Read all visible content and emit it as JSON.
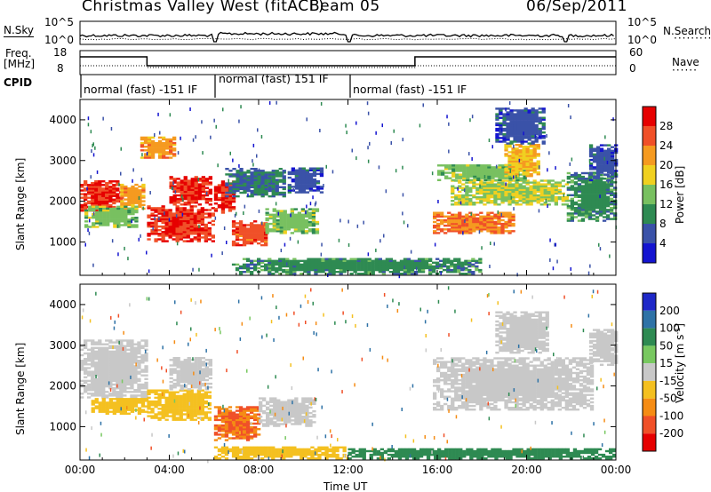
{
  "header": {
    "station": "Christmas Valley West (fitACF)",
    "beam": "Beam 05",
    "date": "06/Sep/2011"
  },
  "top_panels": {
    "nsky_label": "N.Sky",
    "nsky_tick_top": "10^5",
    "nsky_tick_bottom": "10^0",
    "nsearch_label": "N.Search",
    "nsearch_tick_top": "10^5",
    "nsearch_tick_bottom": "10^0",
    "freq_label_1": "Freq.",
    "freq_label_2": "[MHz]",
    "freq_tick_top": "18",
    "freq_tick_bottom": "8",
    "nave_label": "Nave",
    "nave_tick_top": "60",
    "nave_tick_bottom": "0",
    "cpid_label": "CPID",
    "cpid_segments": [
      "normal (fast) -151 IF",
      "normal (fast) 151 IF",
      "normal (fast) -151 IF"
    ]
  },
  "chart_data": [
    {
      "type": "heatmap",
      "title": "",
      "quantity": "Power",
      "ylabel": "Slant Range [km]",
      "xlabel": "Time UT",
      "x_ticks": [
        "00:00",
        "04:00",
        "08:00",
        "12:00",
        "16:00",
        "20:00",
        "00:00"
      ],
      "y_ticks": [
        1000,
        2000,
        3000,
        4000
      ],
      "ylim": [
        180,
        4500
      ],
      "xlim_hours": [
        0,
        24
      ],
      "colorbar": {
        "label": "Power [dB]",
        "ticks": [
          4,
          8,
          12,
          16,
          20,
          24,
          28
        ]
      },
      "colors": [
        "#1414d0",
        "#3a52a8",
        "#2e8a52",
        "#78c060",
        "#f0d020",
        "#f59a20",
        "#f05028",
        "#e60000"
      ],
      "regions": [
        {
          "t": [
            0.0,
            1.8
          ],
          "r": [
            1750,
            2500
          ],
          "level": 28
        },
        {
          "t": [
            1.8,
            2.9
          ],
          "r": [
            1800,
            2400
          ],
          "level": 22
        },
        {
          "t": [
            0.2,
            2.6
          ],
          "r": [
            1350,
            1850
          ],
          "level": 14
        },
        {
          "t": [
            3.0,
            5.9
          ],
          "r": [
            1000,
            1900
          ],
          "level": 28
        },
        {
          "t": [
            4.0,
            5.8
          ],
          "r": [
            1900,
            2600
          ],
          "level": 28
        },
        {
          "t": [
            2.7,
            4.2
          ],
          "r": [
            3050,
            3550
          ],
          "level": 22
        },
        {
          "t": [
            6.0,
            6.9
          ],
          "r": [
            1700,
            2500
          ],
          "level": 28
        },
        {
          "t": [
            6.8,
            8.4
          ],
          "r": [
            900,
            1500
          ],
          "level": 26
        },
        {
          "t": [
            8.3,
            10.6
          ],
          "r": [
            1200,
            1800
          ],
          "level": 14
        },
        {
          "t": [
            6.5,
            9.2
          ],
          "r": [
            2100,
            2800
          ],
          "level": 8
        },
        {
          "t": [
            9.3,
            10.8
          ],
          "r": [
            2200,
            2800
          ],
          "level": 6
        },
        {
          "t": [
            6.8,
            18.0
          ],
          "r": [
            200,
            600
          ],
          "level": 10
        },
        {
          "t": [
            15.8,
            19.4
          ],
          "r": [
            1200,
            1700
          ],
          "level": 24
        },
        {
          "t": [
            16.6,
            21.8
          ],
          "r": [
            1900,
            2500
          ],
          "level": 16
        },
        {
          "t": [
            16.0,
            20.0
          ],
          "r": [
            2500,
            2900
          ],
          "level": 14
        },
        {
          "t": [
            19.0,
            20.6
          ],
          "r": [
            2600,
            3400
          ],
          "level": 20
        },
        {
          "t": [
            18.6,
            20.8
          ],
          "r": [
            3400,
            4300
          ],
          "level": 6
        },
        {
          "t": [
            21.8,
            24.0
          ],
          "r": [
            1500,
            2700
          ],
          "level": 10
        },
        {
          "t": [
            22.8,
            24.0
          ],
          "r": [
            2500,
            3400
          ],
          "level": 6
        }
      ]
    },
    {
      "type": "heatmap",
      "title": "",
      "quantity": "Velocity",
      "ylabel": "Slant Range [km]",
      "xlabel": "Time UT",
      "x_ticks": [
        "00:00",
        "04:00",
        "08:00",
        "12:00",
        "16:00",
        "20:00",
        "00:00"
      ],
      "y_ticks": [
        1000,
        2000,
        3000,
        4000
      ],
      "ylim": [
        180,
        4500
      ],
      "xlim_hours": [
        0,
        24
      ],
      "colorbar": {
        "label": "Velocity [m s^-1]",
        "ticks": [
          200,
          100,
          50,
          15,
          -15,
          -50,
          -100,
          -200
        ]
      },
      "colors": [
        "#1e28c8",
        "#2e72a6",
        "#2e8a52",
        "#78c860",
        "#c8c8c8",
        "#f4c020",
        "#f58c14",
        "#f05028",
        "#e60000"
      ],
      "regions": [
        {
          "t": [
            0.0,
            3.0
          ],
          "r": [
            1700,
            3100
          ],
          "level": 0
        },
        {
          "t": [
            0.5,
            3.0
          ],
          "r": [
            1300,
            1700
          ],
          "level": -30
        },
        {
          "t": [
            3.0,
            5.8
          ],
          "r": [
            1150,
            1900
          ],
          "level": -30
        },
        {
          "t": [
            4.0,
            5.8
          ],
          "r": [
            1900,
            2700
          ],
          "level": 0
        },
        {
          "t": [
            6.0,
            8.0
          ],
          "r": [
            650,
            1500
          ],
          "level": -100
        },
        {
          "t": [
            8.0,
            10.5
          ],
          "r": [
            1000,
            1700
          ],
          "level": 0
        },
        {
          "t": [
            6.0,
            12.0
          ],
          "r": [
            200,
            500
          ],
          "level": -40
        },
        {
          "t": [
            12.0,
            24.0
          ],
          "r": [
            200,
            450
          ],
          "level": 40
        },
        {
          "t": [
            15.8,
            23.0
          ],
          "r": [
            1400,
            2700
          ],
          "level": 0
        },
        {
          "t": [
            18.6,
            21.0
          ],
          "r": [
            2800,
            3800
          ],
          "level": 0
        },
        {
          "t": [
            22.8,
            24.0
          ],
          "r": [
            2500,
            3400
          ],
          "level": 0
        }
      ]
    }
  ]
}
